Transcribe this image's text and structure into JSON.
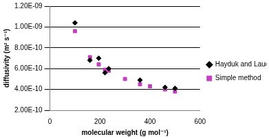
{
  "chart_data": {
    "type": "scatter",
    "x_label": "molecular weight (g mol⁻¹)",
    "y_label": "diffusivity (m² s⁻¹)",
    "xlim": [
      0,
      600
    ],
    "xticks": [
      0,
      200,
      400,
      600
    ],
    "ylim": [
      2e-10,
      1.2e-09
    ],
    "yticks": [
      {
        "value": 2e-10,
        "label": "2.00E-10"
      },
      {
        "value": 4e-10,
        "label": "4.00E-10"
      },
      {
        "value": 6e-10,
        "label": "6.00E-10"
      },
      {
        "value": 8e-10,
        "label": "8.00E-10"
      },
      {
        "value": 1e-09,
        "label": "1.00E-09"
      },
      {
        "value": 1.2e-09,
        "label": "1.20E-09"
      }
    ],
    "grid": "y",
    "legend": "right",
    "series": [
      {
        "name": "Hayduk and Laudie method",
        "color": "#000000",
        "marker": "diamond",
        "x": [
          100,
          160,
          195,
          220,
          235,
          360,
          460,
          500
        ],
        "values": [
          1.04e-09,
          6.8e-10,
          7e-10,
          5.6e-10,
          6e-10,
          4.9e-10,
          4.2e-10,
          4.1e-10
        ]
      },
      {
        "name": "Simple method",
        "color": "#c040c0",
        "marker": "square",
        "x": [
          100,
          160,
          195,
          220,
          235,
          300,
          360,
          400,
          460,
          500
        ],
        "values": [
          9.6e-10,
          7.1e-10,
          6.4e-10,
          5.9e-10,
          5.8e-10,
          5e-10,
          4.5e-10,
          4.3e-10,
          4e-10,
          3.8e-10
        ]
      }
    ]
  }
}
